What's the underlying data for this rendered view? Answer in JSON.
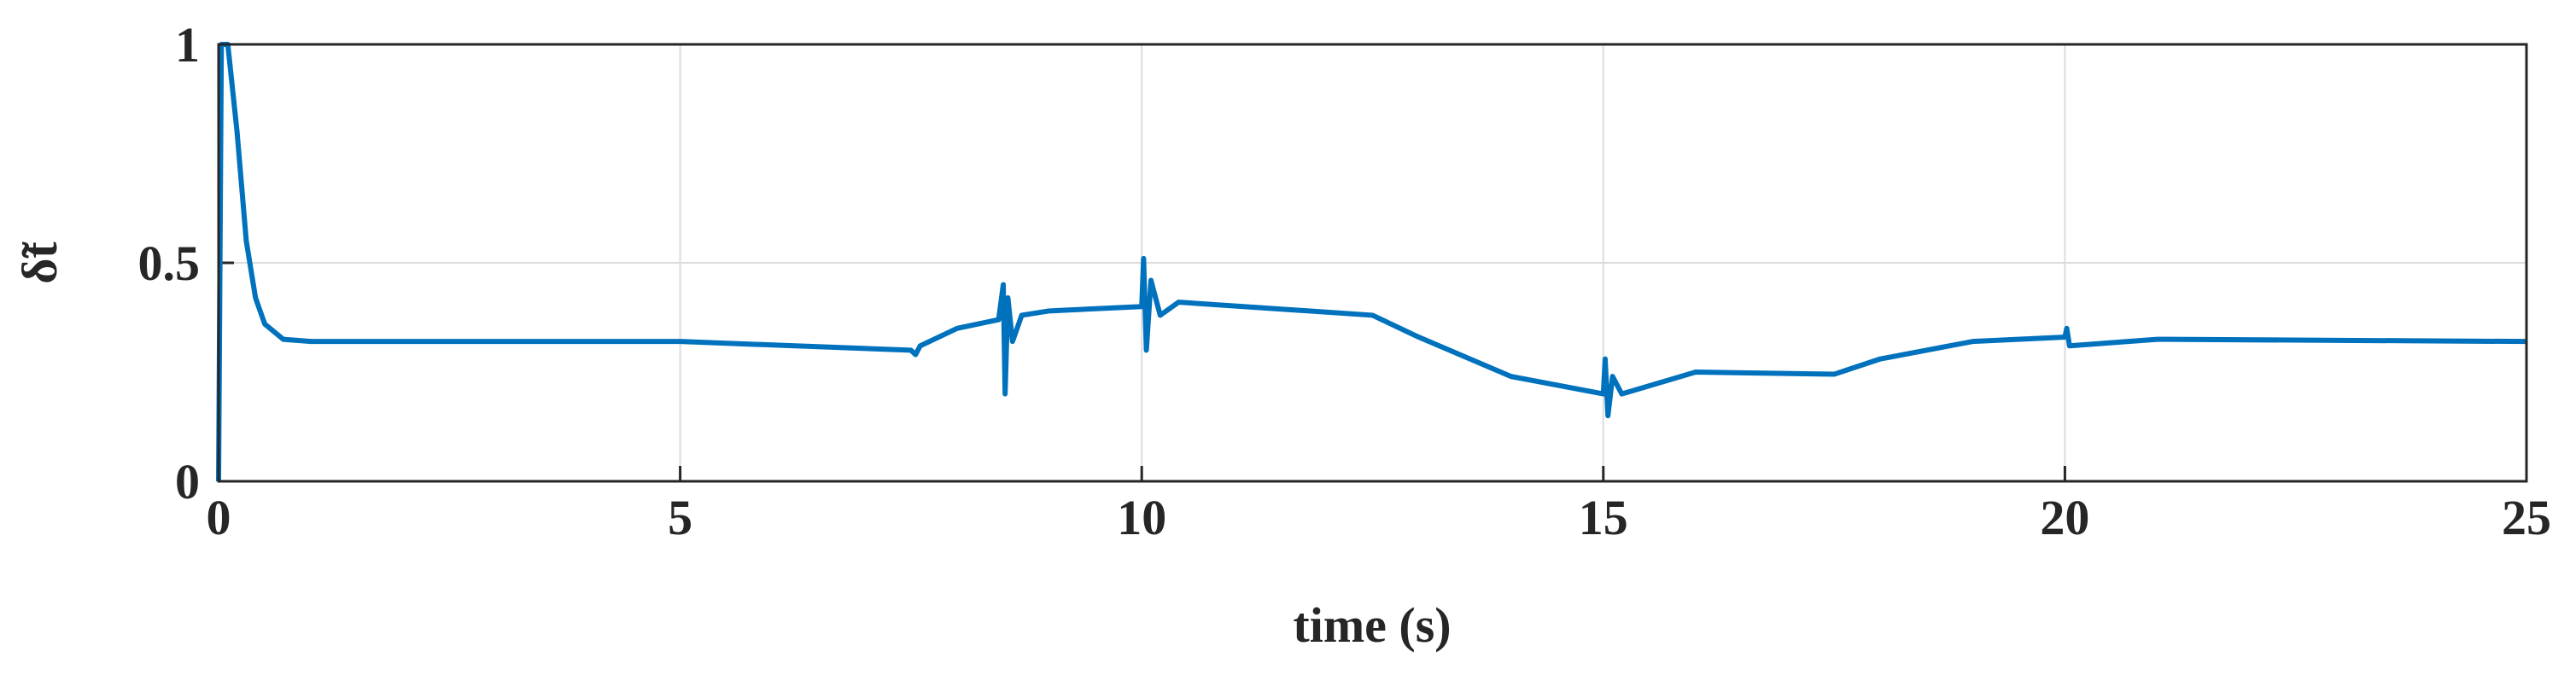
{
  "chart_data": {
    "type": "line",
    "xlabel": "time (s)",
    "ylabel": "δ̃t",
    "xlim": [
      0,
      25
    ],
    "xticks": [
      0,
      5,
      10,
      15,
      20,
      25
    ],
    "ylim": [
      0,
      1
    ],
    "yticks": [
      0,
      0.5,
      1
    ],
    "grid": true,
    "x": [
      0,
      0.03,
      0.1,
      0.2,
      0.3,
      0.4,
      0.5,
      0.7,
      1,
      5,
      7.5,
      7.55,
      7.6,
      8,
      8.45,
      8.5,
      8.52,
      8.55,
      8.6,
      8.7,
      9,
      10,
      10.02,
      10.05,
      10.1,
      10.2,
      10.4,
      12.5,
      13,
      14,
      15,
      15.02,
      15.05,
      15.1,
      15.2,
      16,
      17.5,
      18,
      19,
      20,
      20.02,
      20.05,
      21,
      25
    ],
    "series": [
      {
        "name": "δ̃t",
        "color": "#0072bd",
        "values": [
          0,
          1,
          1,
          0.8,
          0.55,
          0.42,
          0.36,
          0.325,
          0.32,
          0.32,
          0.3,
          0.29,
          0.31,
          0.35,
          0.37,
          0.45,
          0.2,
          0.42,
          0.32,
          0.38,
          0.39,
          0.4,
          0.51,
          0.3,
          0.46,
          0.38,
          0.41,
          0.38,
          0.33,
          0.24,
          0.2,
          0.28,
          0.15,
          0.24,
          0.2,
          0.25,
          0.245,
          0.28,
          0.32,
          0.33,
          0.35,
          0.31,
          0.325,
          0.32
        ]
      }
    ]
  }
}
